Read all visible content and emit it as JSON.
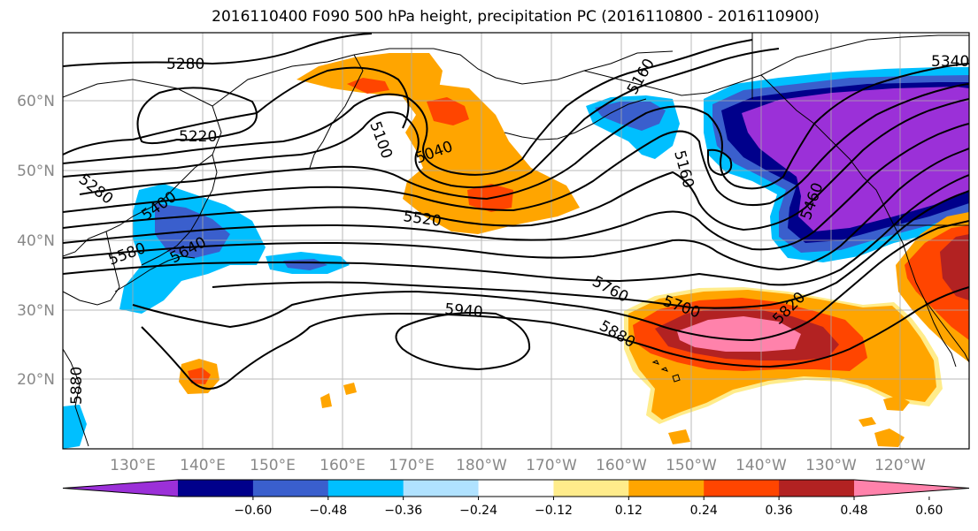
{
  "title": "2016110400 F090 500 hPa height, precipitation PC (2016110800 - 2016110900)",
  "lat_labels": [
    "60°N",
    "50°N",
    "40°N",
    "30°N",
    "20°N"
  ],
  "lon_labels": [
    "130°E",
    "140°E",
    "150°E",
    "160°E",
    "170°E",
    "180°W",
    "170°W",
    "160°W",
    "150°W",
    "140°W",
    "130°W",
    "120°W"
  ],
  "contour_labels": [
    "5280",
    "5220",
    "5280",
    "5400",
    "5580",
    "5640",
    "5100",
    "5040",
    "5520",
    "5160",
    "5160",
    "5460",
    "5340",
    "5940",
    "5760",
    "5700",
    "5880",
    "5820",
    "5880"
  ],
  "colorbar": {
    "ticks": [
      "−0.60",
      "−0.48",
      "−0.36",
      "−0.24",
      "−0.12",
      "0.12",
      "0.24",
      "0.36",
      "0.48",
      "0.60"
    ],
    "colors": [
      "#9b30d8",
      "#00008b",
      "#3a5fcd",
      "#00bfff",
      "#b0e2ff",
      "#ffffff",
      "#ffec8b",
      "#ffa500",
      "#ff4500",
      "#b22222",
      "#ff82ab"
    ]
  },
  "colors": {
    "purple": "#9b30d8",
    "navy": "#00008b",
    "blue": "#3a5fcd",
    "cyan": "#00bfff",
    "lightblue": "#b0e2ff",
    "yellow": "#ffec8b",
    "orange": "#ffa500",
    "redorange": "#ff4500",
    "darkred": "#b22222",
    "pink": "#ff82ab"
  }
}
